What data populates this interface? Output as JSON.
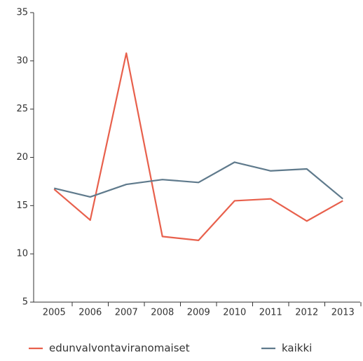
{
  "chart_data": {
    "type": "line",
    "categories": [
      "2005",
      "2006",
      "2007",
      "2008",
      "2009",
      "2010",
      "2011",
      "2012",
      "2013"
    ],
    "series": [
      {
        "name": "edunvalvontaviranomaiset",
        "color": "#e8604c",
        "values": [
          16.7,
          13.5,
          30.8,
          11.8,
          11.4,
          15.5,
          15.7,
          13.4,
          15.5
        ]
      },
      {
        "name": "kaikki",
        "color": "#5f7a8c",
        "values": [
          16.8,
          15.9,
          17.2,
          17.7,
          17.4,
          19.5,
          18.6,
          18.8,
          15.7
        ]
      }
    ],
    "ylim": [
      5,
      35
    ],
    "yticks": [
      5,
      10,
      15,
      20,
      25,
      30,
      35
    ],
    "grid": false,
    "legend": "bottom"
  }
}
